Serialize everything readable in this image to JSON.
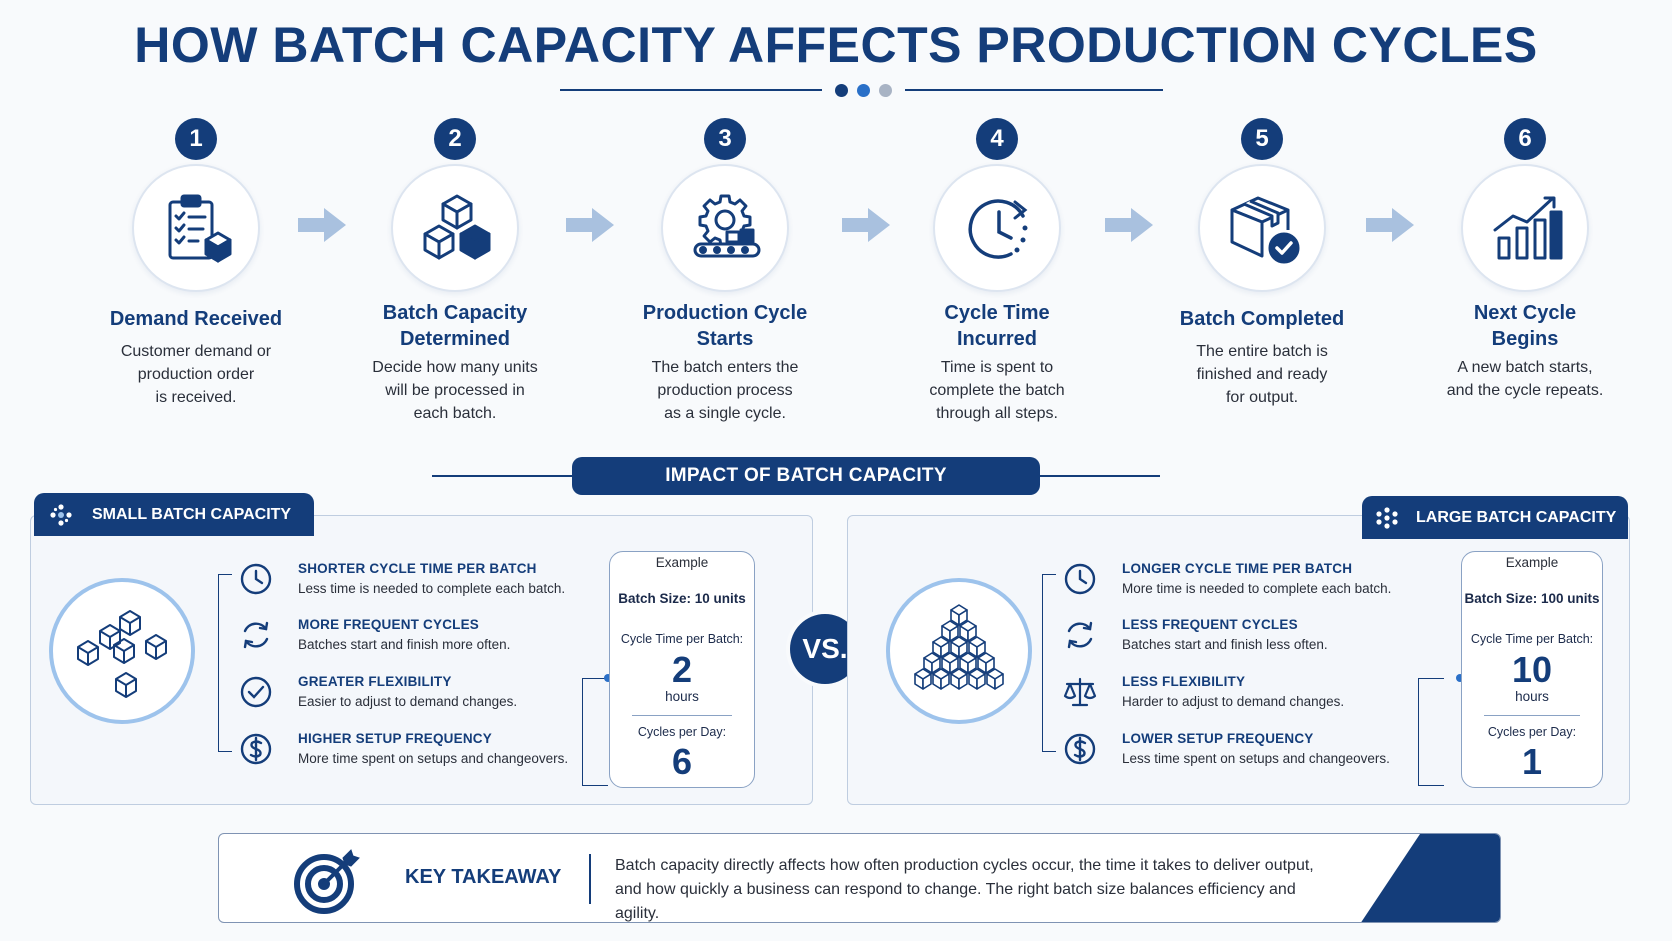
{
  "title": "HOW BATCH CAPACITY AFFECTS PRODUCTION CYCLES",
  "colors": {
    "navy": "#143d7a",
    "light_blue": "#9dc3ec",
    "accent_blue": "#2a70c8",
    "arrow": "#a9c1df"
  },
  "steps": [
    {
      "num": "1",
      "title_lines": [
        "Demand Received"
      ],
      "desc_lines": [
        "Customer demand or",
        "production order",
        "is received."
      ],
      "icon": "clipboard-checklist-icon"
    },
    {
      "num": "2",
      "title_lines": [
        "Batch Capacity",
        "Determined"
      ],
      "desc_lines": [
        "Decide how many units",
        "will be processed in",
        "each batch."
      ],
      "icon": "boxes-icon"
    },
    {
      "num": "3",
      "title_lines": [
        "Production Cycle",
        "Starts"
      ],
      "desc_lines": [
        "The batch enters the",
        "production process",
        "as a single cycle."
      ],
      "icon": "gear-conveyor-icon"
    },
    {
      "num": "4",
      "title_lines": [
        "Cycle Time",
        "Incurred"
      ],
      "desc_lines": [
        "Time is spent to",
        "complete the batch",
        "through all steps."
      ],
      "icon": "clock-icon"
    },
    {
      "num": "5",
      "title_lines": [
        "Batch Completed"
      ],
      "desc_lines": [
        "The entire batch is",
        "finished and ready",
        "for output."
      ],
      "icon": "box-check-icon"
    },
    {
      "num": "6",
      "title_lines": [
        "Next Cycle",
        "Begins"
      ],
      "desc_lines": [
        "A new batch starts,",
        "and the cycle repeats."
      ],
      "icon": "growth-chart-icon"
    }
  ],
  "impact_label": "IMPACT OF BATCH CAPACITY",
  "vs_label": "VS.",
  "small": {
    "label": "SMALL BATCH CAPACITY",
    "features": [
      {
        "title": "SHORTER CYCLE TIME PER BATCH",
        "desc": "Less time is needed to complete each batch.",
        "icon": "clock-icon"
      },
      {
        "title": "MORE FREQUENT CYCLES",
        "desc": "Batches start and finish more often.",
        "icon": "refresh-icon"
      },
      {
        "title": "GREATER FLEXIBILITY",
        "desc": "Easier to adjust to demand changes.",
        "icon": "check-circle-icon"
      },
      {
        "title": "HIGHER SETUP FREQUENCY",
        "desc": "More time spent on setups and changeovers.",
        "icon": "dollar-icon"
      }
    ],
    "example": {
      "label": "Example",
      "batch_size": "Batch Size: 10 units",
      "cycle_time_label": "Cycle Time per Batch:",
      "cycle_time_value": "2",
      "cycle_time_unit": "hours",
      "cycles_label": "Cycles per Day:",
      "cycles_value": "6"
    }
  },
  "large": {
    "label": "LARGE BATCH CAPACITY",
    "features": [
      {
        "title": "LONGER CYCLE TIME PER BATCH",
        "desc": "More time is needed to complete each batch.",
        "icon": "clock-icon"
      },
      {
        "title": "LESS FREQUENT CYCLES",
        "desc": "Batches start and finish less often.",
        "icon": "refresh-icon"
      },
      {
        "title": "LESS FLEXIBILITY",
        "desc": "Harder to adjust to demand changes.",
        "icon": "scale-icon"
      },
      {
        "title": "LOWER SETUP FREQUENCY",
        "desc": "Less time spent on setups and changeovers.",
        "icon": "dollar-icon"
      }
    ],
    "example": {
      "label": "Example",
      "batch_size": "Batch Size: 100 units",
      "cycle_time_label": "Cycle Time per Batch:",
      "cycle_time_value": "10",
      "cycle_time_unit": "hours",
      "cycles_label": "Cycles per Day:",
      "cycles_value": "1"
    }
  },
  "takeaway": {
    "label": "KEY TAKEAWAY",
    "text_lines": [
      "Batch capacity directly affects how often production cycles occur, the time it takes to deliver output,",
      "and how quickly a business can respond to change. The right batch size balances efficiency and agility."
    ],
    "icon": "target-icon"
  }
}
